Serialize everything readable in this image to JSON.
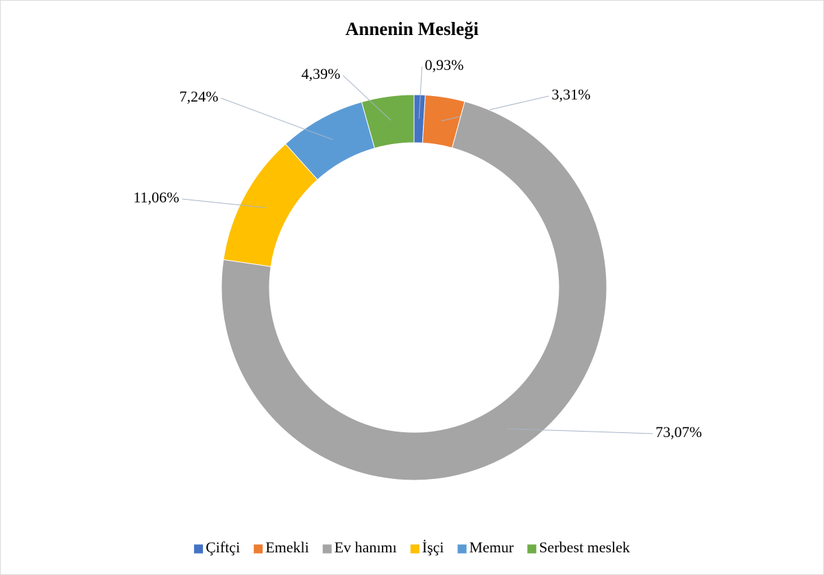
{
  "chart_data": {
    "type": "donut",
    "title": "Annenin Mesleği",
    "categories": [
      "Çiftçi",
      "Emekli",
      "Ev hanımı",
      "İşçi",
      "Memur",
      "Serbest meslek"
    ],
    "values": [
      0.93,
      3.31,
      73.07,
      11.06,
      7.24,
      4.39
    ],
    "value_labels": [
      "0,93%",
      "3,31%",
      "73,07%",
      "11,06%",
      "7,24%",
      "4,39%"
    ],
    "colors": [
      "#4472c4",
      "#ed7d31",
      "#a5a5a5",
      "#ffc000",
      "#5b9bd5",
      "#70ad47"
    ],
    "legend": "bottom"
  }
}
